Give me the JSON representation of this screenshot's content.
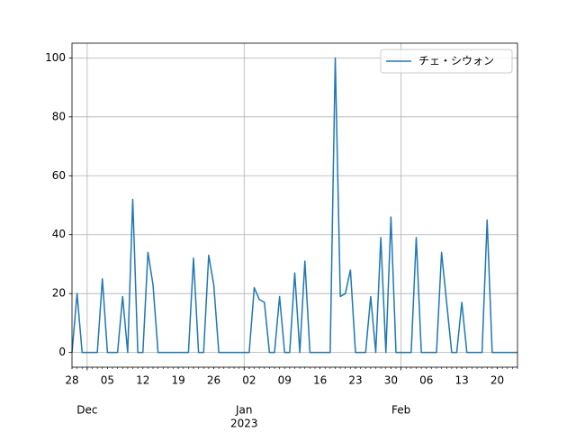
{
  "chart_data": {
    "type": "line",
    "x": [
      "2022-11-28",
      "2022-11-29",
      "2022-11-30",
      "2022-12-01",
      "2022-12-02",
      "2022-12-03",
      "2022-12-04",
      "2022-12-05",
      "2022-12-06",
      "2022-12-07",
      "2022-12-08",
      "2022-12-09",
      "2022-12-10",
      "2022-12-11",
      "2022-12-12",
      "2022-12-13",
      "2022-12-14",
      "2022-12-15",
      "2022-12-16",
      "2022-12-17",
      "2022-12-18",
      "2022-12-19",
      "2022-12-20",
      "2022-12-21",
      "2022-12-22",
      "2022-12-23",
      "2022-12-24",
      "2022-12-25",
      "2022-12-26",
      "2022-12-27",
      "2022-12-28",
      "2022-12-29",
      "2022-12-30",
      "2022-12-31",
      "2023-01-01",
      "2023-01-02",
      "2023-01-03",
      "2023-01-04",
      "2023-01-05",
      "2023-01-06",
      "2023-01-07",
      "2023-01-08",
      "2023-01-09",
      "2023-01-10",
      "2023-01-11",
      "2023-01-12",
      "2023-01-13",
      "2023-01-14",
      "2023-01-15",
      "2023-01-16",
      "2023-01-17",
      "2023-01-18",
      "2023-01-19",
      "2023-01-20",
      "2023-01-21",
      "2023-01-22",
      "2023-01-23",
      "2023-01-24",
      "2023-01-25",
      "2023-01-26",
      "2023-01-27",
      "2023-01-28",
      "2023-01-29",
      "2023-01-30",
      "2023-01-31",
      "2023-02-01",
      "2023-02-02",
      "2023-02-03",
      "2023-02-04",
      "2023-02-05",
      "2023-02-06",
      "2023-02-07",
      "2023-02-08",
      "2023-02-09",
      "2023-02-10",
      "2023-02-11",
      "2023-02-12",
      "2023-02-13",
      "2023-02-14",
      "2023-02-15",
      "2023-02-16",
      "2023-02-17",
      "2023-02-18",
      "2023-02-19",
      "2023-02-20",
      "2023-02-21",
      "2023-02-22",
      "2023-02-23",
      "2023-02-24"
    ],
    "series": [
      {
        "name": "チェ・シウォン",
        "color": "#1f77b4",
        "values": [
          0,
          20,
          0,
          0,
          0,
          0,
          25,
          0,
          0,
          0,
          19,
          0,
          52,
          0,
          0,
          34,
          23,
          0,
          0,
          0,
          0,
          0,
          0,
          0,
          32,
          0,
          0,
          33,
          23,
          0,
          0,
          0,
          0,
          0,
          0,
          0,
          22,
          18,
          17,
          0,
          0,
          19,
          0,
          0,
          27,
          0,
          31,
          0,
          0,
          0,
          0,
          0,
          100,
          19,
          20,
          28,
          0,
          0,
          0,
          19,
          0,
          39,
          0,
          46,
          0,
          0,
          0,
          0,
          39,
          0,
          0,
          0,
          0,
          34,
          17,
          0,
          0,
          17,
          0,
          0,
          0,
          0,
          45,
          0,
          0,
          0,
          0,
          0,
          0
        ]
      }
    ],
    "xlim": [
      "2022-11-28",
      "2023-02-24"
    ],
    "xticks": [
      {
        "value": "2022-11-28",
        "label": "28"
      },
      {
        "value": "2022-12-05",
        "label": "05"
      },
      {
        "value": "2022-12-12",
        "label": "12"
      },
      {
        "value": "2022-12-19",
        "label": "19"
      },
      {
        "value": "2022-12-26",
        "label": "26"
      },
      {
        "value": "2023-01-02",
        "label": "02"
      },
      {
        "value": "2023-01-09",
        "label": "09"
      },
      {
        "value": "2023-01-16",
        "label": "16"
      },
      {
        "value": "2023-01-23",
        "label": "23"
      },
      {
        "value": "2023-01-30",
        "label": "30"
      },
      {
        "value": "2023-02-06",
        "label": "06"
      },
      {
        "value": "2023-02-13",
        "label": "13"
      },
      {
        "value": "2023-02-20",
        "label": "20"
      }
    ],
    "month_ticks": [
      {
        "value": "2022-12-01",
        "label": "Dec"
      },
      {
        "value": "2023-01-01",
        "label": "Jan"
      },
      {
        "value": "2023-02-01",
        "label": "Feb"
      }
    ],
    "year_tick": {
      "value": "2023-01-01",
      "label": "2023"
    },
    "ylim": [
      -5,
      105
    ],
    "yticks": [
      0,
      20,
      40,
      60,
      80,
      100
    ],
    "grid": true,
    "legend": "upper right"
  }
}
